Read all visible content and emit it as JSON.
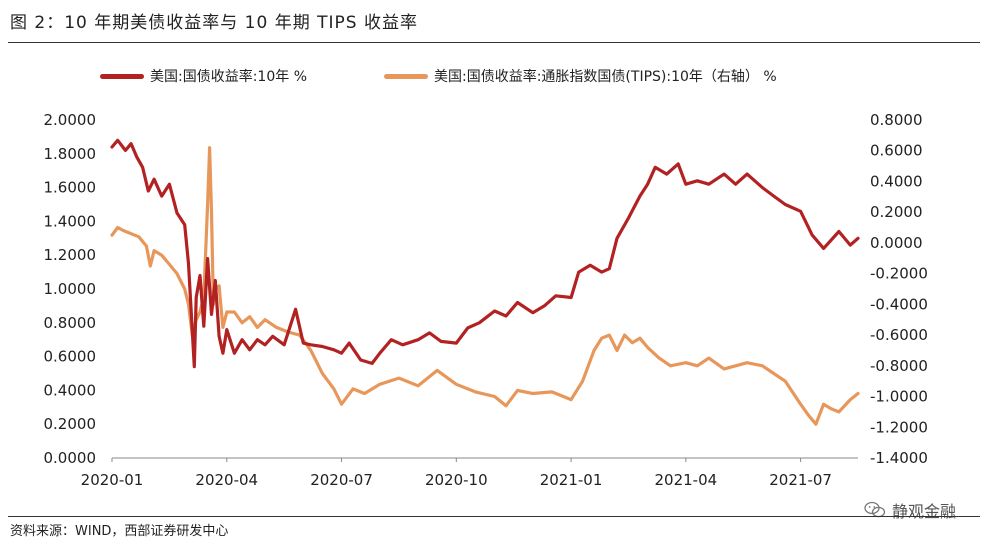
{
  "title": "图 2：10 年期美债收益率与 10 年期 TIPS 收益率",
  "source": "资料来源：WIND，西部证券研发中心",
  "watermark": "静观金融",
  "chart_data": {
    "type": "line",
    "title": "图 2：10 年期美债收益率与 10 年期 TIPS 收益率",
    "x_tick_labels": [
      "2020-01",
      "2020-04",
      "2020-07",
      "2020-10",
      "2021-01",
      "2021-04",
      "2021-07"
    ],
    "x_range": [
      "2020-01",
      "2021-08"
    ],
    "left_axis": {
      "min": 0,
      "max": 2,
      "step": 0.2,
      "tick_labels": [
        "0.0000",
        "0.2000",
        "0.4000",
        "0.6000",
        "0.8000",
        "1.0000",
        "1.2000",
        "1.4000",
        "1.6000",
        "1.8000",
        "2.0000"
      ]
    },
    "right_axis": {
      "min": -1.4,
      "max": 0.8,
      "step": 0.2,
      "tick_labels": [
        "-1.4000",
        "-1.2000",
        "-1.0000",
        "-0.8000",
        "-0.6000",
        "-0.4000",
        "-0.2000",
        "0.0000",
        "0.2000",
        "0.4000",
        "0.6000",
        "0.8000"
      ]
    },
    "grid": false,
    "series": [
      {
        "name": "美国:国债收益率:10年",
        "legend_label": "美国:国债收益率:10年 %",
        "color": "#B22222",
        "axis": "left",
        "x": [
          0,
          0.15,
          0.35,
          0.5,
          0.65,
          0.8,
          0.95,
          1.1,
          1.3,
          1.5,
          1.7,
          1.9,
          2.0,
          2.1,
          2.15,
          2.2,
          2.3,
          2.4,
          2.5,
          2.6,
          2.7,
          2.8,
          2.9,
          3.0,
          3.2,
          3.4,
          3.6,
          3.8,
          4.0,
          4.2,
          4.5,
          4.8,
          5.0,
          5.2,
          5.5,
          5.8,
          6.0,
          6.2,
          6.5,
          6.8,
          7.0,
          7.3,
          7.6,
          8.0,
          8.3,
          8.6,
          9.0,
          9.3,
          9.6,
          10.0,
          10.3,
          10.6,
          11.0,
          11.3,
          11.6,
          12.0,
          12.2,
          12.5,
          12.8,
          13.0,
          13.2,
          13.5,
          13.8,
          14.0,
          14.2,
          14.5,
          14.8,
          15.0,
          15.3,
          15.6,
          16.0,
          16.3,
          16.6,
          17.0,
          17.3,
          17.6,
          18.0,
          18.3,
          18.6,
          19.0,
          19.3,
          19.5
        ],
        "values": [
          1.84,
          1.88,
          1.82,
          1.86,
          1.78,
          1.72,
          1.58,
          1.65,
          1.55,
          1.62,
          1.45,
          1.38,
          1.15,
          0.75,
          0.54,
          0.95,
          1.08,
          0.78,
          1.18,
          0.85,
          1.05,
          0.72,
          0.62,
          0.76,
          0.62,
          0.7,
          0.64,
          0.7,
          0.67,
          0.72,
          0.67,
          0.88,
          0.68,
          0.67,
          0.66,
          0.64,
          0.62,
          0.68,
          0.58,
          0.56,
          0.62,
          0.7,
          0.67,
          0.7,
          0.74,
          0.69,
          0.68,
          0.77,
          0.8,
          0.87,
          0.84,
          0.92,
          0.86,
          0.9,
          0.96,
          0.95,
          1.1,
          1.14,
          1.1,
          1.12,
          1.3,
          1.42,
          1.55,
          1.62,
          1.72,
          1.68,
          1.74,
          1.62,
          1.64,
          1.62,
          1.68,
          1.62,
          1.68,
          1.6,
          1.55,
          1.5,
          1.46,
          1.32,
          1.24,
          1.34,
          1.26,
          1.3
        ]
      },
      {
        "name": "美国:国债收益率:通胀指数国债(TIPS):10年（右轴）",
        "legend_label": "美国:国债收益率:通胀指数国债(TIPS):10年（右轴） %",
        "color": "#E8975A",
        "axis": "right",
        "x": [
          0,
          0.15,
          0.3,
          0.5,
          0.7,
          0.9,
          1.0,
          1.1,
          1.3,
          1.5,
          1.7,
          1.9,
          2.0,
          2.1,
          2.2,
          2.3,
          2.4,
          2.5,
          2.55,
          2.6,
          2.65,
          2.7,
          2.8,
          2.9,
          3.0,
          3.2,
          3.4,
          3.6,
          3.8,
          4.0,
          4.3,
          4.6,
          4.9,
          5.2,
          5.5,
          5.8,
          6.0,
          6.3,
          6.6,
          7.0,
          7.5,
          8.0,
          8.5,
          9.0,
          9.5,
          10.0,
          10.3,
          10.6,
          11.0,
          11.5,
          12.0,
          12.3,
          12.6,
          12.8,
          13.0,
          13.2,
          13.4,
          13.6,
          13.8,
          14.0,
          14.3,
          14.6,
          15.0,
          15.3,
          15.6,
          16.0,
          16.3,
          16.6,
          17.0,
          17.3,
          17.6,
          18.0,
          18.2,
          18.4,
          18.6,
          18.8,
          19.0,
          19.3,
          19.5
        ],
        "values": [
          0.05,
          0.1,
          0.08,
          0.06,
          0.04,
          -0.02,
          -0.15,
          -0.05,
          -0.08,
          -0.14,
          -0.2,
          -0.3,
          -0.4,
          -0.6,
          -0.5,
          -0.45,
          -0.35,
          0.25,
          0.62,
          0.2,
          -0.4,
          -0.3,
          -0.28,
          -0.55,
          -0.45,
          -0.45,
          -0.52,
          -0.48,
          -0.55,
          -0.5,
          -0.55,
          -0.58,
          -0.6,
          -0.7,
          -0.85,
          -0.95,
          -1.05,
          -0.95,
          -0.98,
          -0.92,
          -0.88,
          -0.93,
          -0.83,
          -0.92,
          -0.97,
          -1.0,
          -1.06,
          -0.96,
          -0.98,
          -0.97,
          -1.02,
          -0.9,
          -0.7,
          -0.62,
          -0.6,
          -0.7,
          -0.6,
          -0.65,
          -0.62,
          -0.68,
          -0.75,
          -0.8,
          -0.78,
          -0.8,
          -0.75,
          -0.82,
          -0.8,
          -0.78,
          -0.8,
          -0.85,
          -0.9,
          -1.05,
          -1.12,
          -1.18,
          -1.05,
          -1.08,
          -1.1,
          -1.02,
          -0.98
        ]
      }
    ]
  }
}
